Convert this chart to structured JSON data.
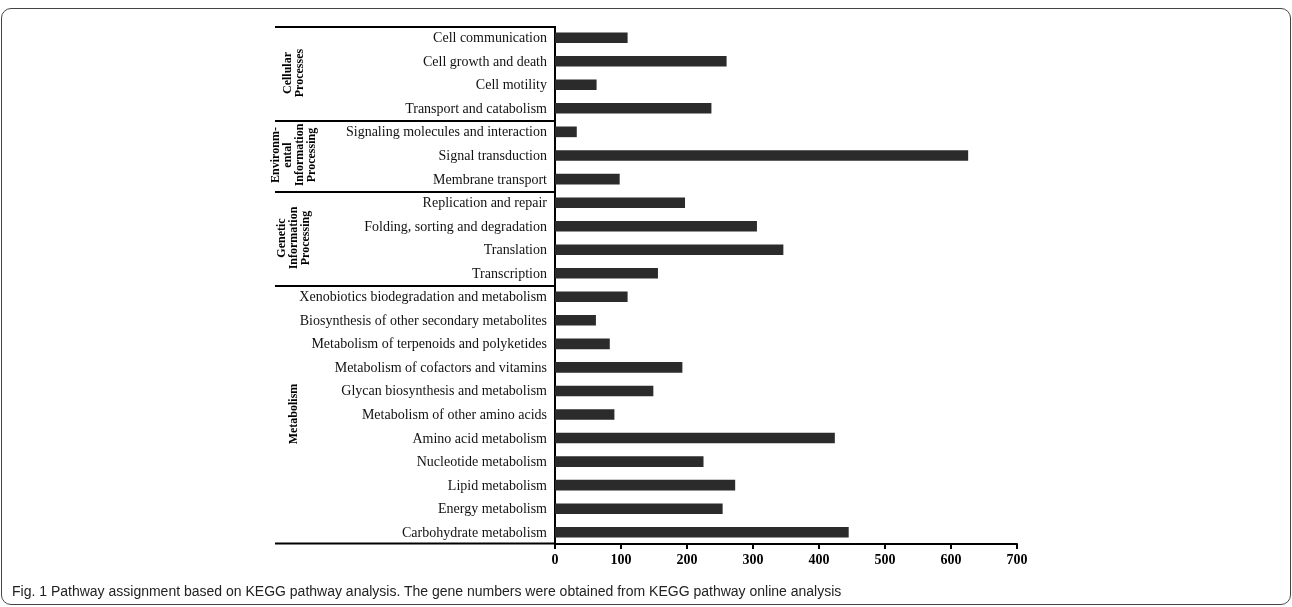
{
  "chart_data": [
    {
      "type": "bar",
      "orientation": "horizontal",
      "ylabel": "Cellular\nProcesses",
      "tick_labels": "y",
      "categories": [
        "Cell communication",
        "Cell growth and death",
        "Cell motility",
        "Transport and catabolism"
      ],
      "values": [
        110,
        260,
        63,
        237
      ],
      "color": "#2b2b2b",
      "xlim": [
        0,
        700
      ]
    },
    {
      "type": "bar",
      "orientation": "horizontal",
      "ylabel": "Environm-\nental\nInformation\nProcessing",
      "tick_labels": "y",
      "categories": [
        "Signaling molecules and interaction",
        "Signal transduction",
        "Membrane transport"
      ],
      "values": [
        33,
        626,
        98
      ],
      "color": "#2b2b2b",
      "xlim": [
        0,
        700
      ]
    },
    {
      "type": "bar",
      "orientation": "horizontal",
      "ylabel": "Genetic\nInformation\nProcessing",
      "tick_labels": "y",
      "categories": [
        "Replication and repair",
        "Folding, sorting and degradation",
        "Translation",
        "Transcription"
      ],
      "values": [
        197,
        306,
        346,
        156
      ],
      "color": "#2b2b2b",
      "xlim": [
        0,
        700
      ]
    },
    {
      "type": "bar",
      "orientation": "horizontal",
      "ylabel": "Metabolism",
      "categories": [
        "Xenobiotics biodegradation and metabolism",
        "Biosynthesis of other secondary metabolites",
        "Metabolism of terpenoids and polyketides",
        "Metabolism of cofactors and vitamins",
        "Glycan biosynthesis and metabolism",
        "Metabolism of other amino acids",
        "Amino acid metabolism",
        "Nucleotide metabolism",
        "Lipid metabolism",
        "Energy metabolism",
        "Carbohydrate metabolism"
      ],
      "values": [
        110,
        62,
        83,
        193,
        149,
        90,
        424,
        225,
        273,
        254,
        445
      ],
      "color": "#2b2b2b",
      "xlim": [
        0,
        700
      ],
      "xticks": [
        0,
        100,
        200,
        300,
        400,
        500,
        600,
        700
      ],
      "annotations": [
        "Fig. 1 Pathway assignment based on KEGG pathway analysis. The gene numbers were obtained from KEGG pathway online analysis"
      ]
    }
  ]
}
